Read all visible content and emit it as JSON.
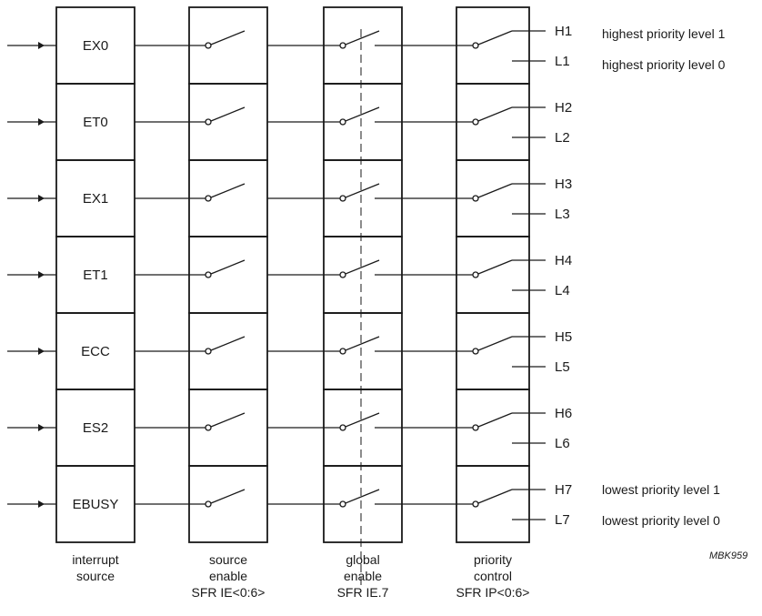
{
  "columns": [
    {
      "name": "interrupt-source",
      "caption": [
        "interrupt",
        "source"
      ]
    },
    {
      "name": "source-enable",
      "caption": [
        "source",
        "enable",
        "SFR IE<0:6>"
      ]
    },
    {
      "name": "global-enable",
      "caption": [
        "global",
        "enable",
        "SFR IE.7"
      ]
    },
    {
      "name": "priority-control",
      "caption": [
        "priority",
        "control",
        "SFR IP<0:6>"
      ]
    }
  ],
  "rows": [
    {
      "source": "EX0",
      "high": "H1",
      "low": "L1"
    },
    {
      "source": "ET0",
      "high": "H2",
      "low": "L2"
    },
    {
      "source": "EX1",
      "high": "H3",
      "low": "L3"
    },
    {
      "source": "ET1",
      "high": "H4",
      "low": "L4"
    },
    {
      "source": "ECC",
      "high": "H5",
      "low": "L5"
    },
    {
      "source": "ES2",
      "high": "H6",
      "low": "L6"
    },
    {
      "source": "EBUSY",
      "high": "H7",
      "low": "L7"
    }
  ],
  "notes": {
    "top_high": "highest priority level 1",
    "top_low": "highest priority level 0",
    "bottom_high": "lowest priority level 1",
    "bottom_low": "lowest priority level 0"
  },
  "reference": "MBK959",
  "colors": {
    "stroke": "#1a1a1a",
    "background": "#ffffff"
  }
}
